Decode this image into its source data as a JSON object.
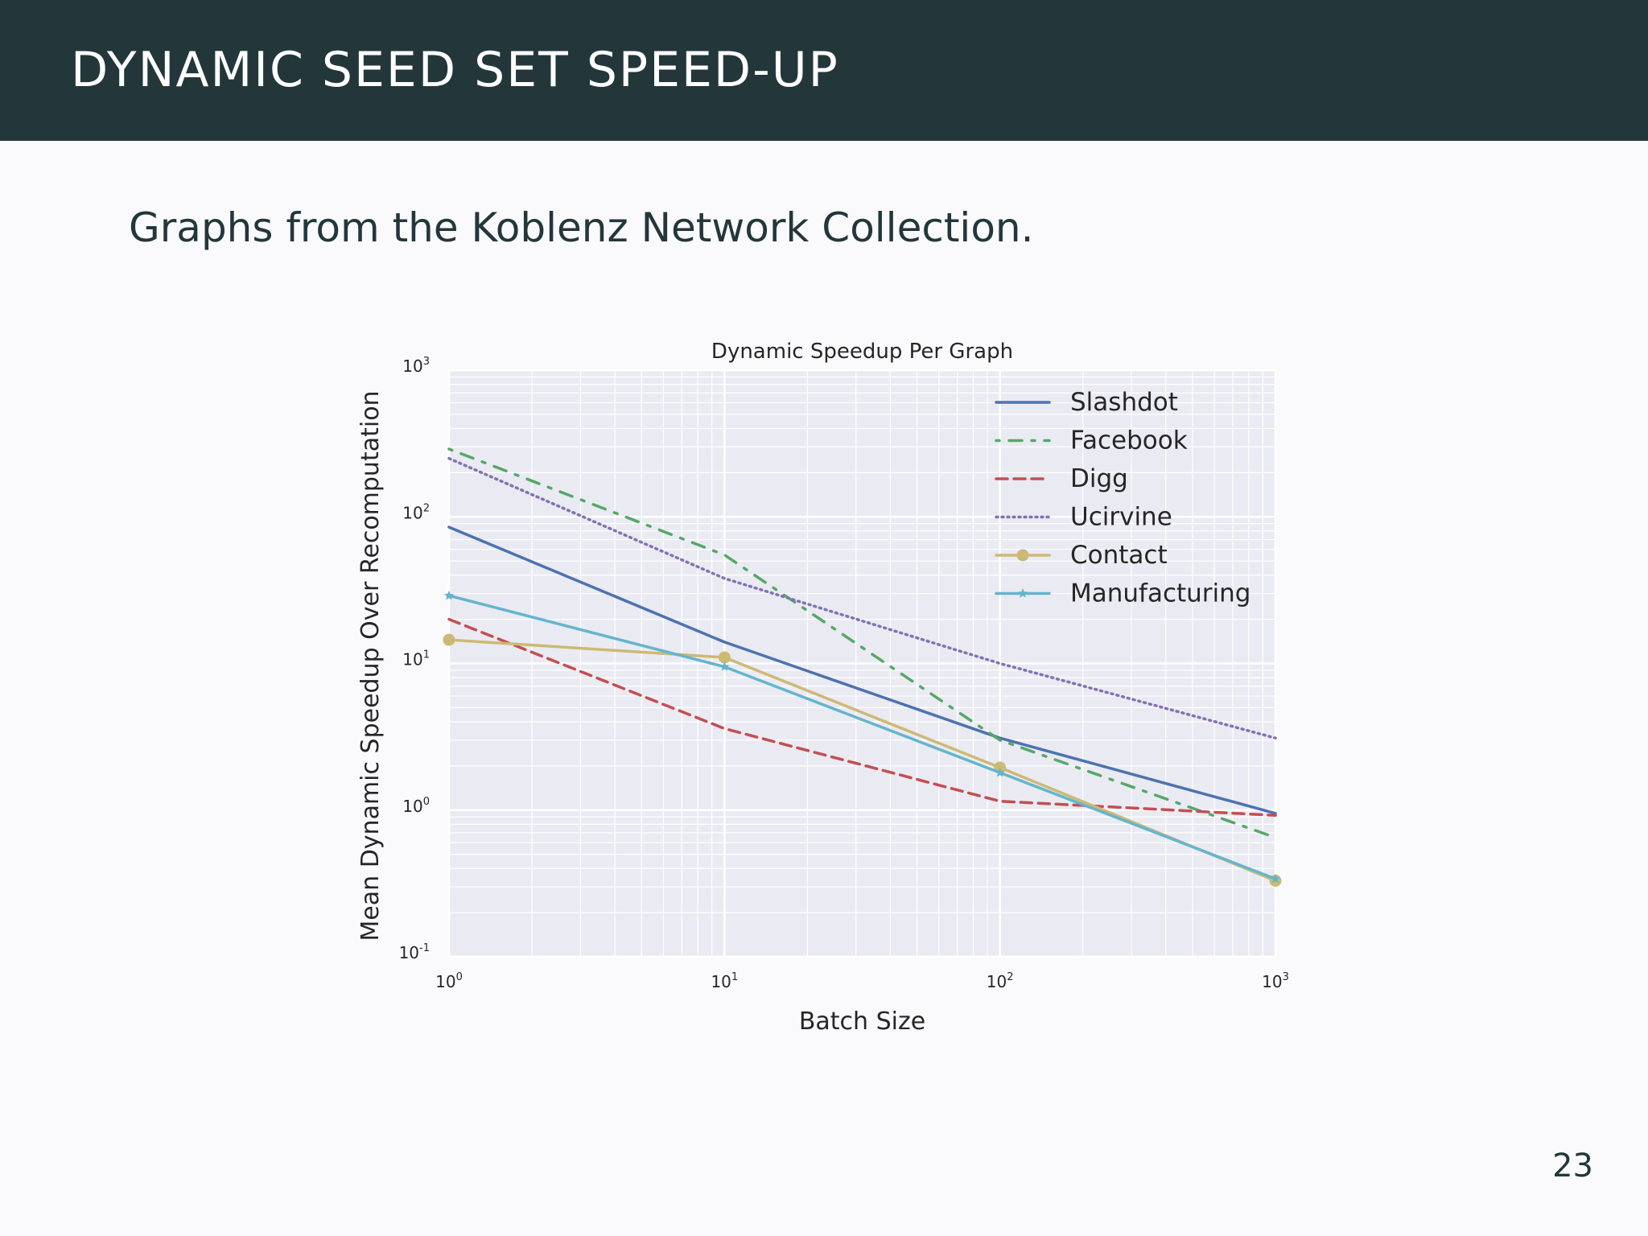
{
  "slide": {
    "title": "DYNAMIC SEED SET SPEED-UP",
    "subtitle": "Graphs from the Koblenz Network Collection.",
    "page_number": "23",
    "header_color": "#23373b"
  },
  "chart_data": {
    "type": "line",
    "title": "Dynamic Speedup Per Graph",
    "xlabel": "Batch Size",
    "ylabel": "Mean Dynamic Speedup Over Recomputation",
    "xscale": "log",
    "yscale": "log",
    "xlim": [
      1,
      1000
    ],
    "ylim": [
      0.1,
      1000
    ],
    "x_ticks": [
      {
        "base": "10",
        "exp": "0"
      },
      {
        "base": "10",
        "exp": "1"
      },
      {
        "base": "10",
        "exp": "2"
      },
      {
        "base": "10",
        "exp": "3"
      }
    ],
    "y_ticks": [
      {
        "base": "10",
        "exp": "-1"
      },
      {
        "base": "10",
        "exp": "0"
      },
      {
        "base": "10",
        "exp": "1"
      },
      {
        "base": "10",
        "exp": "2"
      },
      {
        "base": "10",
        "exp": "3"
      }
    ],
    "grid": true,
    "legend_position": "top-right",
    "x": [
      1,
      10,
      100,
      1000
    ],
    "series": [
      {
        "name": "Slashdot",
        "values": [
          85,
          14,
          3.1,
          0.95
        ],
        "color": "#4c72b0",
        "dash": "",
        "marker": "none"
      },
      {
        "name": "Facebook",
        "values": [
          290,
          55,
          3.0,
          0.65
        ],
        "color": "#55a868",
        "dash": "4 12 16 12",
        "marker": "none"
      },
      {
        "name": "Digg",
        "values": [
          20,
          3.6,
          1.15,
          0.92
        ],
        "color": "#c44e52",
        "dash": "14 8",
        "marker": "none"
      },
      {
        "name": "Ucirvine",
        "values": [
          250,
          38,
          10,
          3.1
        ],
        "color": "#8172b2",
        "dash": "2 5",
        "marker": "none"
      },
      {
        "name": "Contact",
        "values": [
          14.5,
          11,
          1.95,
          0.33
        ],
        "color": "#ccb974",
        "dash": "",
        "marker": "circle"
      },
      {
        "name": "Manufacturing",
        "values": [
          29,
          9.5,
          1.8,
          0.34
        ],
        "color": "#64b5cd",
        "dash": "",
        "marker": "star"
      }
    ]
  }
}
